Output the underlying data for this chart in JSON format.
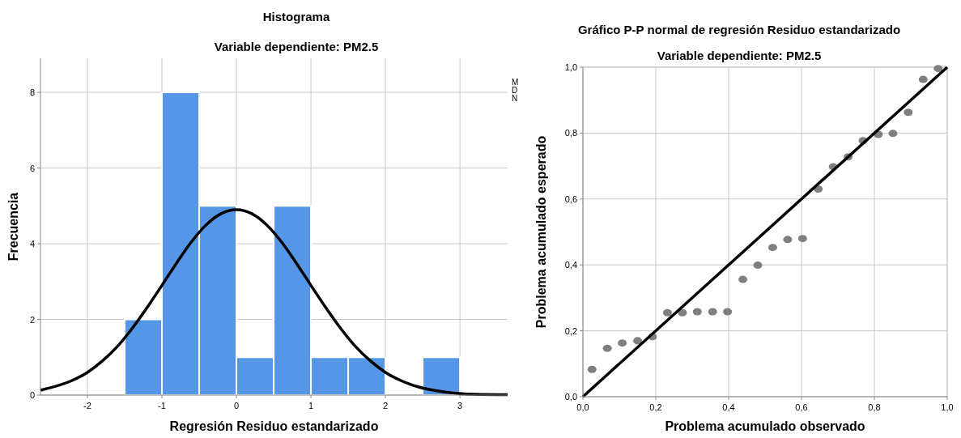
{
  "chart_data": [
    {
      "type": "histogram",
      "title": "Histograma",
      "subtitle": "Variable dependiente: PM2.5",
      "xlabel": "Regresión Residuo estandarizado",
      "ylabel": "Frecuencia",
      "xlim": [
        -2.63,
        3.64
      ],
      "ylim": [
        0,
        8.9
      ],
      "xticks": [
        -2,
        -1,
        0,
        1,
        2,
        3
      ],
      "yticks": [
        0,
        2,
        4,
        6,
        8
      ],
      "grid": true,
      "annotations": [
        "M",
        "D",
        "N"
      ],
      "series": [
        {
          "type": "histogram",
          "color": "#5596e6",
          "bins": [
            -1.5,
            -1,
            -0.5,
            0,
            0.5,
            1,
            1.5,
            2,
            2.5,
            3
          ],
          "values": [
            2,
            8,
            5,
            1,
            5,
            1,
            1,
            0,
            1
          ]
        },
        {
          "type": "line",
          "color": "#000000",
          "x": [
            -2.63,
            -2.2,
            -2,
            -1.8,
            -1.6,
            -1.4,
            -1.2,
            -1,
            -0.8,
            -0.6,
            -0.4,
            -0.2,
            0,
            0.2,
            0.4,
            0.6,
            0.8,
            1,
            1.2,
            1.4,
            1.6,
            1.8,
            2,
            2.2,
            2.4,
            2.8,
            3.2,
            3.64
          ],
          "values": [
            0.13,
            0.39,
            0.6,
            0.9,
            1.28,
            1.76,
            2.31,
            2.9,
            3.5,
            4.06,
            4.51,
            4.8,
            4.9,
            4.8,
            4.51,
            4.06,
            3.5,
            2.9,
            2.31,
            1.76,
            1.28,
            0.9,
            0.6,
            0.39,
            0.24,
            0.08,
            0.02,
            0.01
          ]
        }
      ]
    },
    {
      "type": "scatter",
      "title": "Gráfico P-P normal de regresión Residuo estandarizado",
      "subtitle": "Variable dependiente: PM2.5",
      "xlabel": "Problema acumulado observado",
      "ylabel": "Problema acumulado esperado",
      "xlim": [
        0,
        1
      ],
      "ylim": [
        0,
        1
      ],
      "xticks": [
        {
          "value": 0,
          "label": "0,0"
        },
        {
          "value": 0.2,
          "label": "0,2"
        },
        {
          "value": 0.4,
          "label": "0,4"
        },
        {
          "value": 0.6,
          "label": "0,6"
        },
        {
          "value": 0.8,
          "label": "0,8"
        },
        {
          "value": 1,
          "label": "1,0"
        }
      ],
      "yticks": [
        {
          "value": 0,
          "label": "0,0"
        },
        {
          "value": 0.2,
          "label": "0,2"
        },
        {
          "value": 0.4,
          "label": "0,4"
        },
        {
          "value": 0.6,
          "label": "0,6"
        },
        {
          "value": 0.8,
          "label": "0,8"
        },
        {
          "value": 1,
          "label": "1,0"
        }
      ],
      "grid": true,
      "series": [
        {
          "type": "scatter",
          "marker": "circle",
          "color": "#7f7f7f",
          "x": [
            0.025,
            0.067,
            0.108,
            0.15,
            0.191,
            0.232,
            0.273,
            0.314,
            0.356,
            0.397,
            0.439,
            0.48,
            0.521,
            0.562,
            0.603,
            0.646,
            0.687,
            0.728,
            0.769,
            0.811,
            0.851,
            0.893,
            0.934,
            0.975
          ],
          "values": [
            0.083,
            0.147,
            0.163,
            0.17,
            0.182,
            0.255,
            0.255,
            0.258,
            0.258,
            0.258,
            0.356,
            0.399,
            0.453,
            0.477,
            0.48,
            0.63,
            0.698,
            0.728,
            0.777,
            0.796,
            0.799,
            0.863,
            0.963,
            0.996
          ]
        },
        {
          "type": "line",
          "color": "#000000",
          "x": [
            0,
            1
          ],
          "values": [
            0,
            1
          ]
        }
      ]
    }
  ]
}
